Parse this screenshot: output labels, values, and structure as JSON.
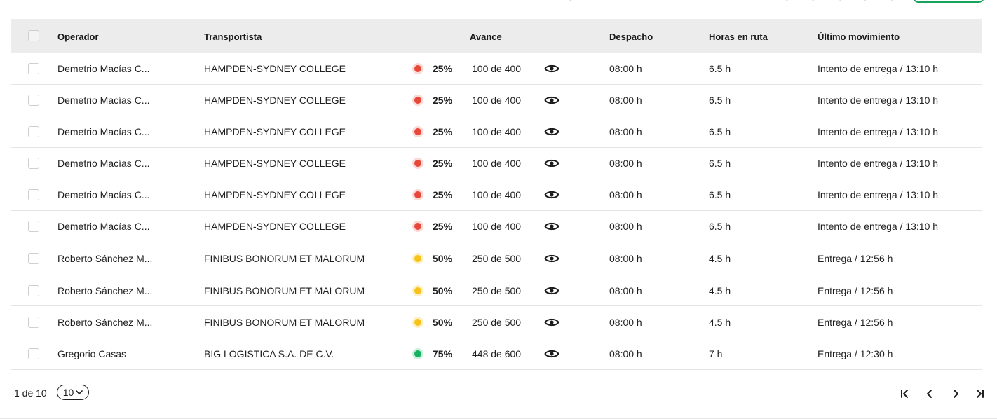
{
  "columns": {
    "operator": "Operador",
    "carrier": "Transportista",
    "progress": "Avance",
    "dispatch": "Despacho",
    "hours": "Horas en ruta",
    "last_move": "Último movimiento"
  },
  "rows": [
    {
      "operator": "Demetrio Macías C...",
      "carrier": "HAMPDEN-SYDNEY COLLEGE",
      "status": "red",
      "pct": "25%",
      "count": "100 de 400",
      "dispatch": "08:00 h",
      "hours": "6.5 h",
      "last_move": "Intento de entrega / 13:10 h"
    },
    {
      "operator": "Demetrio Macías C...",
      "carrier": "HAMPDEN-SYDNEY COLLEGE",
      "status": "red",
      "pct": "25%",
      "count": "100 de 400",
      "dispatch": "08:00 h",
      "hours": "6.5 h",
      "last_move": "Intento de entrega / 13:10 h"
    },
    {
      "operator": "Demetrio Macías C...",
      "carrier": "HAMPDEN-SYDNEY COLLEGE",
      "status": "red",
      "pct": "25%",
      "count": "100 de 400",
      "dispatch": "08:00 h",
      "hours": "6.5 h",
      "last_move": "Intento de entrega / 13:10 h"
    },
    {
      "operator": "Demetrio Macías C...",
      "carrier": "HAMPDEN-SYDNEY COLLEGE",
      "status": "red",
      "pct": "25%",
      "count": "100 de 400",
      "dispatch": "08:00 h",
      "hours": "6.5 h",
      "last_move": "Intento de entrega / 13:10 h"
    },
    {
      "operator": "Demetrio Macías C...",
      "carrier": "HAMPDEN-SYDNEY COLLEGE",
      "status": "red",
      "pct": "25%",
      "count": "100 de 400",
      "dispatch": "08:00 h",
      "hours": "6.5 h",
      "last_move": "Intento de entrega / 13:10 h"
    },
    {
      "operator": "Demetrio Macías C...",
      "carrier": "HAMPDEN-SYDNEY COLLEGE",
      "status": "red",
      "pct": "25%",
      "count": "100 de 400",
      "dispatch": "08:00 h",
      "hours": "6.5 h",
      "last_move": "Intento de entrega / 13:10 h"
    },
    {
      "operator": "Roberto Sánchez M...",
      "carrier": "FINIBUS BONORUM ET MALORUM",
      "status": "yellow",
      "pct": "50%",
      "count": "250 de 500",
      "dispatch": "08:00 h",
      "hours": "4.5 h",
      "last_move": "Entrega / 12:56 h"
    },
    {
      "operator": "Roberto Sánchez M...",
      "carrier": "FINIBUS BONORUM ET MALORUM",
      "status": "yellow",
      "pct": "50%",
      "count": "250 de 500",
      "dispatch": "08:00 h",
      "hours": "4.5 h",
      "last_move": "Entrega / 12:56 h"
    },
    {
      "operator": "Roberto Sánchez M...",
      "carrier": "FINIBUS BONORUM ET MALORUM",
      "status": "yellow",
      "pct": "50%",
      "count": "250 de 500",
      "dispatch": "08:00 h",
      "hours": "4.5 h",
      "last_move": "Entrega / 12:56 h"
    },
    {
      "operator": "Gregorio Casas",
      "carrier": "BIG LOGISTICA S.A. DE C.V.",
      "status": "green",
      "pct": "75%",
      "count": "448 de 600",
      "dispatch": "08:00 h",
      "hours": "7 h",
      "last_move": "Entrega / 12:30 h"
    }
  ],
  "status_colors": {
    "red": "#e8483a",
    "yellow": "#f7c31a",
    "green": "#17b161"
  },
  "pagination": {
    "page_text": "1 de 10",
    "page_size": "10",
    "icons": [
      "first-page-icon",
      "prev-page-icon",
      "next-page-icon",
      "last-page-icon"
    ]
  }
}
